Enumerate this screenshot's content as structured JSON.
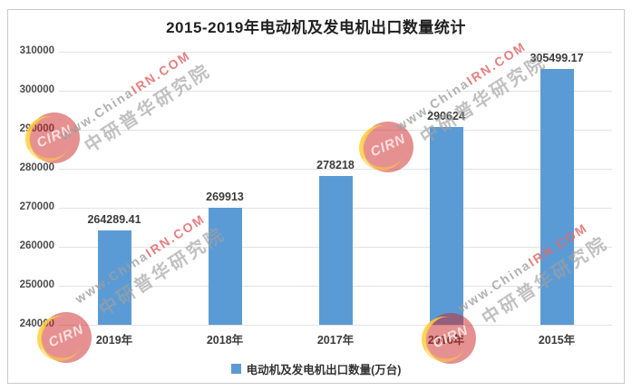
{
  "title": "2015-2019年电动机及发电机出口数量统计",
  "legend": {
    "label": "电动机及发电机出口数量(万台)",
    "marker_color": "#5b9bd5"
  },
  "chart_data": {
    "type": "bar",
    "title": "2015-2019年电动机及发电机出口数量统计",
    "categories": [
      "2019年",
      "2018年",
      "2017年",
      "2016年",
      "2015年"
    ],
    "values": [
      264289.41,
      269913,
      278218,
      290624,
      305499.17
    ],
    "data_labels": [
      "264289.41",
      "269913",
      "278218",
      "290624",
      "305499.17"
    ],
    "series_name": "电动机及发电机出口数量(万台)",
    "xlabel": "",
    "ylabel": "",
    "ylim": [
      240000,
      310000
    ],
    "ytick_step": 10000,
    "yticks": [
      "310000",
      "300000",
      "290000",
      "280000",
      "270000",
      "260000",
      "250000",
      "240000"
    ],
    "bar_color": "#5b9bd5",
    "grid": true,
    "legend_position": "bottom"
  },
  "watermark": {
    "line1_gray": "www.China",
    "line1_red": "IRN.COM",
    "line2": "中研普华研究院",
    "logo_text": "CIRN",
    "logo_color": "#cc2424",
    "accent_yellow": "#ffd03c"
  }
}
